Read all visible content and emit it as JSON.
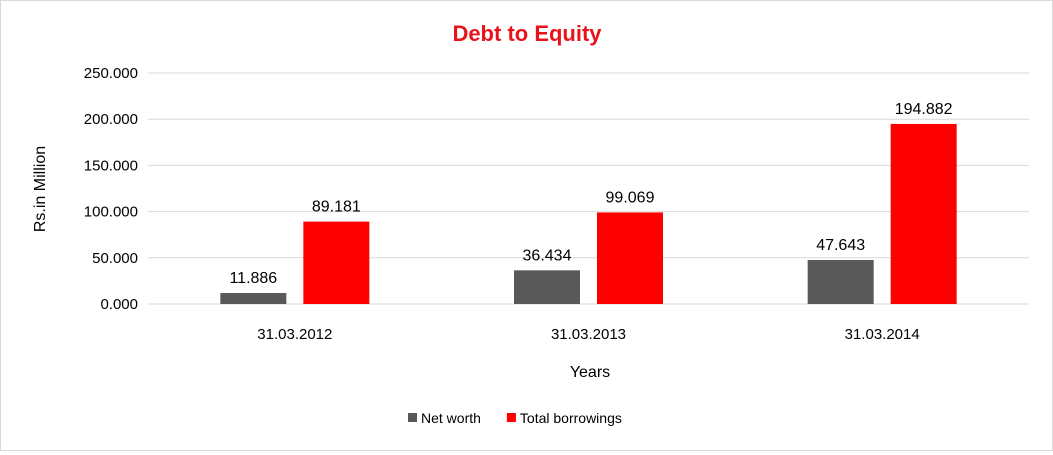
{
  "chart_data": {
    "type": "bar",
    "title": "Debt to Equity",
    "title_color": "#e8141b",
    "xlabel": "Years",
    "ylabel": "Rs.in Million",
    "categories": [
      "31.03.2012",
      "31.03.2013",
      "31.03.2014"
    ],
    "series": [
      {
        "name": "Net worth",
        "values": [
          11.886,
          36.434,
          47.643
        ],
        "labels": [
          "11.886",
          "36.434",
          "47.643"
        ],
        "color": "#595959"
      },
      {
        "name": "Total borrowings",
        "values": [
          89.181,
          99.069,
          194.882
        ],
        "labels": [
          "89.181",
          "99.069",
          "194.882"
        ],
        "color": "#ff0000"
      }
    ],
    "ylim": [
      0,
      250
    ],
    "yticks": [
      0,
      50,
      100,
      150,
      200,
      250
    ],
    "ytick_labels": [
      "0.000",
      "50.000",
      "100.000",
      "150.000",
      "200.000",
      "250.000"
    ],
    "grid": true,
    "grid_color": "#d9d9d9",
    "legend_position": "bottom"
  }
}
